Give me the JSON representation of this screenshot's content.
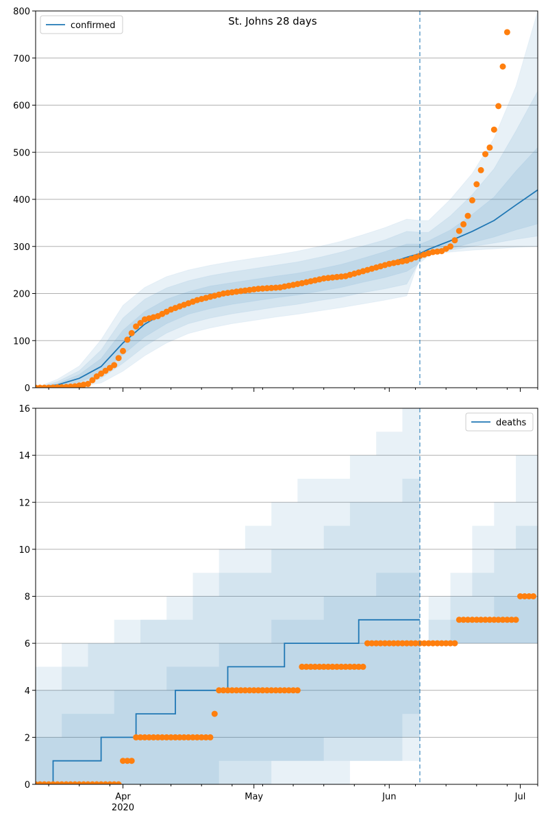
{
  "figure_title": "St. Johns 28 days",
  "colors": {
    "model_line": "#1f77b4",
    "band": "#1f77b4",
    "observed": "#ff7f0e",
    "grid": "#b0b0b0",
    "forecast_line": "#1f77b4"
  },
  "chart_data": [
    {
      "type": "line",
      "panel": "confirmed",
      "legend": {
        "label": "confirmed",
        "position": "top-left"
      },
      "x_range": [
        "2020-03-12",
        "2020-07-05"
      ],
      "ylim": [
        0,
        800
      ],
      "yticks": [
        0,
        100,
        200,
        300,
        400,
        500,
        600,
        700,
        800
      ],
      "grid": "horizontal",
      "forecast_start": "2020-06-08",
      "model": {
        "x": [
          "2020-03-12",
          "2020-03-17",
          "2020-03-22",
          "2020-03-27",
          "2020-04-01",
          "2020-04-06",
          "2020-04-11",
          "2020-04-16",
          "2020-04-21",
          "2020-04-26",
          "2020-05-01",
          "2020-05-06",
          "2020-05-11",
          "2020-05-16",
          "2020-05-21",
          "2020-05-26",
          "2020-05-31",
          "2020-06-05",
          "2020-06-08",
          "2020-06-10",
          "2020-06-15",
          "2020-06-20",
          "2020-06-25",
          "2020-06-30",
          "2020-07-05"
        ],
        "median": [
          0,
          6,
          20,
          45,
          95,
          135,
          162,
          180,
          192,
          200,
          207,
          214,
          220,
          229,
          238,
          250,
          262,
          277,
          285,
          294,
          312,
          332,
          355,
          388,
          420
        ],
        "bands": [
          {
            "lower": [
              0,
              3,
              12,
              30,
              70,
              108,
              136,
              156,
              168,
              177,
              184,
              191,
              197,
              205,
              213,
              224,
              234,
              247,
              265,
              280,
              295,
              308,
              320,
              335,
              348
            ],
            "upper": [
              0,
              9,
              28,
              62,
              122,
              162,
              188,
              204,
              216,
              223,
              230,
              237,
              243,
              252,
              262,
              275,
              289,
              305,
              305,
              312,
              335,
              368,
              405,
              460,
              510
            ]
          },
          {
            "lower": [
              0,
              1,
              7,
              20,
              52,
              88,
              116,
              136,
              148,
              157,
              164,
              171,
              177,
              185,
              192,
              202,
              210,
              220,
              270,
              285,
              292,
              300,
              307,
              315,
              322
            ],
            "upper": [
              0,
              13,
              36,
              80,
              148,
              188,
              212,
              227,
              238,
              246,
              253,
              260,
              267,
              277,
              288,
              301,
              314,
              332,
              330,
              330,
              365,
              410,
              465,
              545,
              630
            ]
          },
          {
            "lower": [
              0,
              0,
              3,
              10,
              35,
              68,
              95,
              115,
              127,
              136,
              143,
              150,
              156,
              163,
              170,
              178,
              186,
              195,
              275,
              283,
              288,
              292,
              295,
              298,
              300
            ],
            "upper": [
              0,
              18,
              46,
              102,
              175,
              213,
              236,
              250,
              260,
              268,
              275,
              282,
              290,
              300,
              311,
              325,
              340,
              358,
              355,
              355,
              400,
              455,
              530,
              640,
              800
            ]
          }
        ]
      },
      "observed": {
        "x": [
          "2020-03-12",
          "2020-03-15",
          "2020-03-18",
          "2020-03-21",
          "2020-03-24",
          "2020-03-26",
          "2020-03-28",
          "2020-03-30",
          "2020-04-01",
          "2020-04-02",
          "2020-04-04",
          "2020-04-06",
          "2020-04-09",
          "2020-04-12",
          "2020-04-15",
          "2020-04-18",
          "2020-04-21",
          "2020-04-24",
          "2020-04-27",
          "2020-05-02",
          "2020-05-07",
          "2020-05-12",
          "2020-05-17",
          "2020-05-22",
          "2020-05-27",
          "2020-06-01",
          "2020-06-05",
          "2020-06-08",
          "2020-06-11",
          "2020-06-13",
          "2020-06-15",
          "2020-06-16",
          "2020-06-17",
          "2020-06-18",
          "2020-06-19",
          "2020-06-20",
          "2020-06-21",
          "2020-06-22",
          "2020-06-23",
          "2020-06-24",
          "2020-06-25",
          "2020-06-26"
        ],
        "y": [
          0,
          0,
          1,
          3,
          8,
          24,
          36,
          48,
          78,
          102,
          130,
          145,
          152,
          166,
          176,
          186,
          193,
          200,
          204,
          210,
          213,
          222,
          232,
          237,
          250,
          263,
          270,
          280,
          288,
          290,
          300,
          313,
          333,
          347,
          365,
          398,
          432,
          462,
          496,
          510,
          548,
          598
        ]
      },
      "observed_tail": {
        "x": [
          "2020-06-27",
          "2020-06-28"
        ],
        "y": [
          682,
          755
        ]
      }
    },
    {
      "type": "line",
      "panel": "deaths",
      "legend": {
        "label": "deaths",
        "position": "top-right"
      },
      "x_range": [
        "2020-03-12",
        "2020-07-05"
      ],
      "ylim": [
        0,
        16
      ],
      "yticks": [
        0,
        2,
        4,
        6,
        8,
        10,
        12,
        14,
        16
      ],
      "xticks": [
        {
          "date": "2020-04-01",
          "label": "Apr",
          "sublabel": "2020"
        },
        {
          "date": "2020-05-01",
          "label": "May"
        },
        {
          "date": "2020-06-01",
          "label": "Jun"
        },
        {
          "date": "2020-07-01",
          "label": "Jul"
        }
      ],
      "grid": "horizontal",
      "forecast_start": "2020-06-08",
      "model_steps": [
        {
          "date": "2020-03-12",
          "value": 0
        },
        {
          "date": "2020-03-16",
          "value": 1
        },
        {
          "date": "2020-03-27",
          "value": 2
        },
        {
          "date": "2020-04-04",
          "value": 3
        },
        {
          "date": "2020-04-13",
          "value": 4
        },
        {
          "date": "2020-04-25",
          "value": 5
        },
        {
          "date": "2020-05-08",
          "value": 6
        },
        {
          "date": "2020-05-25",
          "value": 7
        }
      ],
      "model_end": "2020-06-08",
      "band_steps": [
        {
          "lower": [
            0,
            0,
            0,
            0,
            0,
            0,
            0,
            1,
            1,
            1,
            1,
            2,
            2,
            2,
            3,
            3
          ],
          "upper": [
            2,
            3,
            3,
            4,
            4,
            5,
            5,
            6,
            6,
            7,
            7,
            8,
            8,
            9,
            9,
            12
          ]
        },
        {
          "lower": [
            0,
            0,
            0,
            0,
            0,
            0,
            0,
            0,
            0,
            1,
            1,
            1,
            1,
            1,
            2,
            2
          ],
          "upper": [
            4,
            5,
            6,
            6,
            7,
            7,
            8,
            9,
            9,
            10,
            10,
            11,
            12,
            12,
            13,
            16
          ]
        },
        {
          "lower": [
            0,
            0,
            0,
            0,
            0,
            0,
            0,
            0,
            0,
            0,
            0,
            0,
            1,
            1,
            1,
            2
          ],
          "upper": [
            5,
            6,
            6,
            7,
            7,
            8,
            9,
            10,
            11,
            12,
            13,
            13,
            14,
            15,
            16,
            16
          ]
        }
      ],
      "band_dates": [
        "2020-03-12",
        "2020-03-18",
        "2020-03-24",
        "2020-03-30",
        "2020-04-05",
        "2020-04-11",
        "2020-04-17",
        "2020-04-23",
        "2020-04-29",
        "2020-05-05",
        "2020-05-11",
        "2020-05-17",
        "2020-05-23",
        "2020-05-29",
        "2020-06-04",
        "2020-06-08"
      ],
      "forecast_model_steps": [
        {
          "date": "2020-06-08",
          "value": 6
        },
        {
          "date": "2020-06-20",
          "value": 7
        },
        {
          "date": "2020-07-01",
          "value": 8
        }
      ],
      "forecast_band_steps": [
        {
          "lower": [
            6,
            6,
            6,
            6,
            6,
            6
          ],
          "upper": [
            6,
            7,
            7,
            8,
            8,
            9
          ]
        },
        {
          "lower": [
            6,
            6,
            6,
            6,
            6,
            6
          ],
          "upper": [
            7,
            8,
            9,
            10,
            11,
            12
          ]
        },
        {
          "lower": [
            6,
            6,
            6,
            6,
            6,
            6
          ],
          "upper": [
            8,
            9,
            11,
            12,
            14,
            16
          ]
        }
      ],
      "forecast_band_dates": [
        "2020-06-10",
        "2020-06-15",
        "2020-06-20",
        "2020-06-25",
        "2020-06-30",
        "2020-07-05"
      ],
      "observed_runs": [
        {
          "from": "2020-03-12",
          "to": "2020-03-31",
          "value": 0
        },
        {
          "from": "2020-04-01",
          "to": "2020-04-03",
          "value": 1
        },
        {
          "from": "2020-04-04",
          "to": "2020-04-21",
          "value": 2
        },
        {
          "from": "2020-04-22",
          "to": "2020-04-22",
          "value": 3
        },
        {
          "from": "2020-04-23",
          "to": "2020-05-11",
          "value": 4
        },
        {
          "from": "2020-05-12",
          "to": "2020-05-26",
          "value": 5
        },
        {
          "from": "2020-05-27",
          "to": "2020-06-16",
          "value": 6
        },
        {
          "from": "2020-06-17",
          "to": "2020-06-30",
          "value": 7
        },
        {
          "from": "2020-07-01",
          "to": "2020-07-04",
          "value": 8
        }
      ]
    }
  ]
}
